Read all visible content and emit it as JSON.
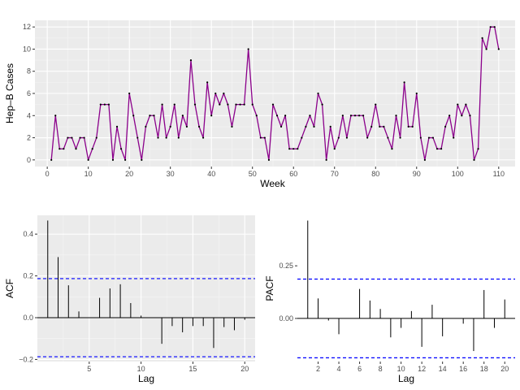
{
  "chart_data": [
    {
      "type": "line",
      "xlabel": "Week",
      "ylabel": "Hep–B Cases",
      "xlim": [
        -3,
        114
      ],
      "ylim": [
        -0.6,
        12.6
      ],
      "xticks": [
        0,
        10,
        20,
        30,
        40,
        50,
        60,
        70,
        80,
        90,
        100,
        110
      ],
      "yticks": [
        0,
        2,
        4,
        6,
        8,
        10,
        12
      ],
      "line_color": "#8B008B",
      "point_color": "#000000",
      "grid": true,
      "x": [
        1,
        2,
        3,
        4,
        5,
        6,
        7,
        8,
        9,
        10,
        11,
        12,
        13,
        14,
        15,
        16,
        17,
        18,
        19,
        20,
        21,
        22,
        23,
        24,
        25,
        26,
        27,
        28,
        29,
        30,
        31,
        32,
        33,
        34,
        35,
        36,
        37,
        38,
        39,
        40,
        41,
        42,
        43,
        44,
        45,
        46,
        47,
        48,
        49,
        50,
        51,
        52,
        53,
        54,
        55,
        56,
        57,
        58,
        59,
        60,
        61,
        62,
        63,
        64,
        65,
        66,
        67,
        68,
        69,
        70,
        71,
        72,
        73,
        74,
        75,
        76,
        77,
        78,
        79,
        80,
        81,
        82,
        83,
        84,
        85,
        86,
        87,
        88,
        89,
        90,
        91,
        92,
        93,
        94,
        95,
        96,
        97,
        98,
        99,
        100,
        101,
        102,
        103,
        104,
        105,
        106,
        107,
        108,
        109,
        110
      ],
      "y": [
        0,
        4,
        1,
        1,
        2,
        2,
        1,
        2,
        2,
        0,
        1,
        2,
        5,
        5,
        5,
        0,
        3,
        1,
        0,
        6,
        4,
        2,
        0,
        3,
        4,
        4,
        2,
        5,
        2,
        3,
        5,
        2,
        4,
        3,
        9,
        5,
        3,
        2,
        7,
        4,
        6,
        5,
        6,
        5,
        3,
        5,
        5,
        5,
        10,
        5,
        4,
        2,
        2,
        0,
        5,
        4,
        3,
        4,
        1,
        1,
        1,
        2,
        3,
        4,
        3,
        6,
        5,
        0,
        3,
        1,
        2,
        4,
        2,
        4,
        4,
        4,
        4,
        2,
        3,
        5,
        3,
        3,
        2,
        1,
        4,
        2,
        7,
        3,
        3,
        6,
        2,
        0,
        2,
        2,
        1,
        1,
        3,
        4,
        2,
        5,
        4,
        5,
        4,
        0,
        1,
        11,
        10,
        12,
        12,
        10
      ]
    },
    {
      "type": "bar",
      "xlabel": "Lag",
      "ylabel": "ACF",
      "xlim": [
        0,
        21
      ],
      "ylim": [
        -0.21,
        0.49
      ],
      "xticks": [
        5,
        10,
        15,
        20
      ],
      "yticks": [
        -0.2,
        0.0,
        0.2,
        0.4
      ],
      "ytick_labels": [
        "−0.2",
        "0.0",
        "0.2",
        "0.4"
      ],
      "conf_limit": 0.187,
      "conf_color": "#0000FF",
      "grid": true,
      "lags": [
        1,
        2,
        3,
        4,
        5,
        6,
        7,
        8,
        9,
        10,
        11,
        12,
        13,
        14,
        15,
        16,
        17,
        18,
        19,
        20
      ],
      "values": [
        0.465,
        0.29,
        0.155,
        0.03,
        0.0,
        0.095,
        0.14,
        0.16,
        0.07,
        0.01,
        0.0,
        -0.125,
        -0.04,
        -0.07,
        -0.04,
        -0.04,
        -0.145,
        -0.045,
        -0.06,
        -0.01
      ]
    },
    {
      "type": "bar",
      "xlabel": "Lag",
      "ylabel": "PACF",
      "xlim": [
        0,
        21
      ],
      "ylim": [
        -0.205,
        0.49
      ],
      "xticks": [
        2,
        4,
        6,
        8,
        10,
        12,
        14,
        16,
        18,
        20
      ],
      "yticks": [
        0.0,
        0.25
      ],
      "ytick_labels": [
        "0.00",
        "0.25"
      ],
      "conf_limit": 0.187,
      "conf_color": "#0000FF",
      "grid": false,
      "lags": [
        1,
        2,
        3,
        4,
        5,
        6,
        7,
        8,
        9,
        10,
        11,
        12,
        13,
        14,
        15,
        16,
        17,
        18,
        19,
        20
      ],
      "values": [
        0.465,
        0.095,
        -0.01,
        -0.075,
        0.0,
        0.14,
        0.085,
        0.045,
        -0.09,
        -0.045,
        0.035,
        -0.135,
        0.065,
        -0.085,
        0.0,
        -0.025,
        -0.155,
        0.135,
        -0.045,
        0.09
      ]
    }
  ]
}
